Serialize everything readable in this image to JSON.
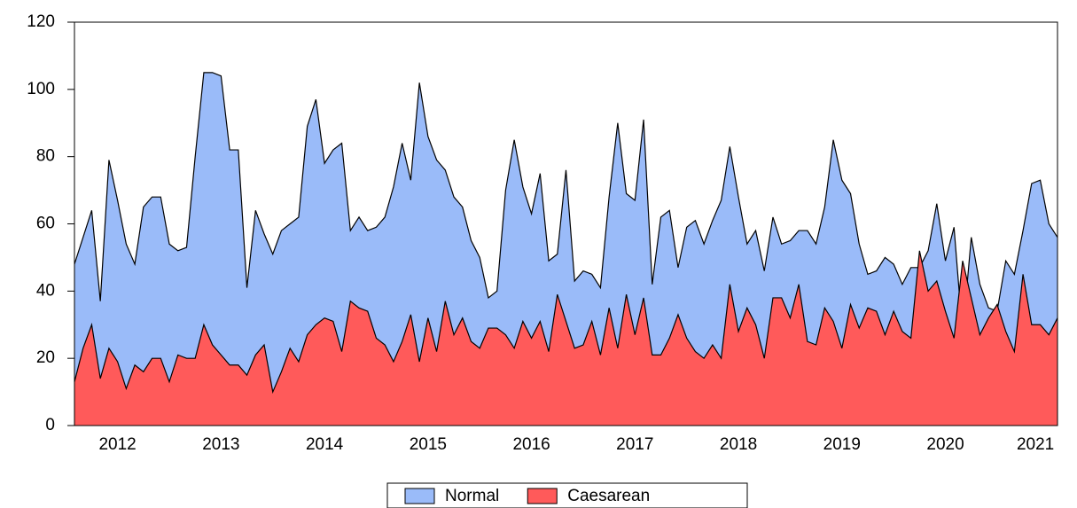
{
  "chart_data": {
    "type": "area",
    "categories": [
      null,
      null,
      null,
      null,
      null,
      "2012",
      null,
      null,
      null,
      null,
      null,
      null,
      null,
      null,
      null,
      null,
      null,
      "2013",
      null,
      null,
      null,
      null,
      null,
      null,
      null,
      null,
      null,
      null,
      null,
      "2014",
      null,
      null,
      null,
      null,
      null,
      null,
      null,
      null,
      null,
      null,
      null,
      "2015",
      null,
      null,
      null,
      null,
      null,
      null,
      null,
      null,
      null,
      null,
      null,
      "2016",
      null,
      null,
      null,
      null,
      null,
      null,
      null,
      null,
      null,
      null,
      null,
      "2017",
      null,
      null,
      null,
      null,
      null,
      null,
      null,
      null,
      null,
      null,
      null,
      "2018",
      null,
      null,
      null,
      null,
      null,
      null,
      null,
      null,
      null,
      null,
      null,
      "2019",
      null,
      null,
      null,
      null,
      null,
      null,
      null,
      null,
      null,
      null,
      null,
      "2020",
      null,
      null,
      null,
      null,
      null,
      null,
      null,
      null,
      "2021",
      null,
      null,
      null,
      null
    ],
    "series": [
      {
        "name": "Normal",
        "color": "#9abbf9",
        "values": [
          48,
          56,
          64,
          37,
          79,
          67,
          54,
          48,
          65,
          68,
          68,
          54,
          52,
          53,
          80,
          105,
          105,
          104,
          82,
          82,
          41,
          64,
          57,
          51,
          58,
          60,
          62,
          89,
          97,
          78,
          82,
          84,
          58,
          62,
          58,
          59,
          62,
          71,
          84,
          73,
          102,
          86,
          79,
          76,
          68,
          65,
          55,
          50,
          38,
          40,
          70,
          85,
          71,
          63,
          75,
          49,
          51,
          76,
          43,
          46,
          45,
          41,
          68,
          90,
          69,
          67,
          91,
          42,
          62,
          64,
          47,
          59,
          61,
          54,
          61,
          67,
          83,
          68,
          54,
          58,
          46,
          62,
          54,
          55,
          58,
          58,
          54,
          65,
          85,
          73,
          69,
          54,
          45,
          46,
          50,
          48,
          42,
          47,
          47,
          52,
          66,
          49,
          59,
          27,
          56,
          42,
          35,
          34,
          49,
          45,
          58,
          72,
          73,
          60,
          56
        ]
      },
      {
        "name": "Caesarean",
        "color": "#ff5a5a",
        "values": [
          13,
          23,
          30,
          14,
          23,
          19,
          11,
          18,
          16,
          20,
          20,
          13,
          21,
          20,
          20,
          30,
          24,
          21,
          18,
          18,
          15,
          21,
          24,
          10,
          16,
          23,
          19,
          27,
          30,
          32,
          31,
          22,
          37,
          35,
          34,
          26,
          24,
          19,
          25,
          33,
          19,
          32,
          22,
          37,
          27,
          32,
          25,
          23,
          29,
          29,
          27,
          23,
          31,
          26,
          31,
          22,
          39,
          31,
          23,
          24,
          31,
          21,
          35,
          23,
          39,
          27,
          38,
          21,
          21,
          26,
          33,
          26,
          22,
          20,
          24,
          20,
          42,
          28,
          35,
          30,
          20,
          38,
          38,
          32,
          42,
          25,
          24,
          35,
          31,
          23,
          36,
          29,
          35,
          34,
          27,
          34,
          28,
          26,
          52,
          40,
          43,
          34,
          26,
          49,
          38,
          27,
          32,
          36,
          28,
          22,
          45,
          30,
          30,
          27,
          32
        ]
      }
    ],
    "ylim": [
      0,
      120
    ],
    "yticks": [
      0,
      20,
      40,
      60,
      80,
      100,
      120
    ],
    "grid": false,
    "legend": "bottom"
  }
}
